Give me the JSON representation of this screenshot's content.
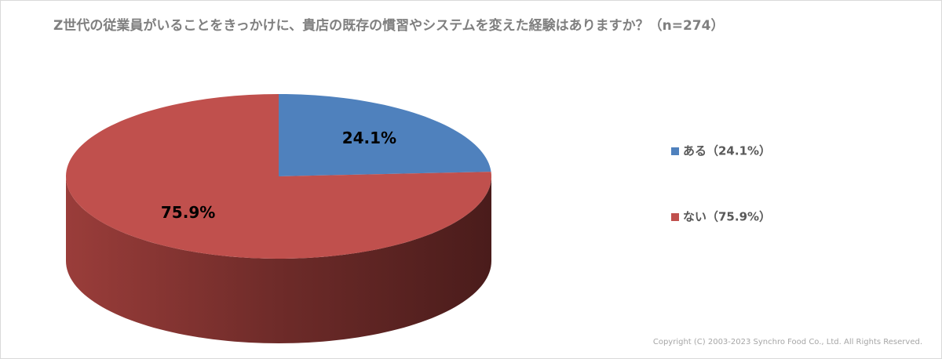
{
  "chart_data": {
    "type": "pie3d",
    "title": "Z世代の従業員がいることをきっかけに、貴店の既存の慣習やシステムを変えた経験はありますか？（n=274）",
    "categories": [
      "ある（24.1%）",
      "ない（75.9%）"
    ],
    "values": [
      24.1,
      75.9
    ],
    "value_labels": [
      "24.1%",
      "75.9%"
    ],
    "colors": [
      "#4f81bd",
      "#c0504d"
    ],
    "legend": "right"
  },
  "copyright": "Copyright (C) 2003-2023  Synchro Food Co., Ltd. All Rights Reserved."
}
